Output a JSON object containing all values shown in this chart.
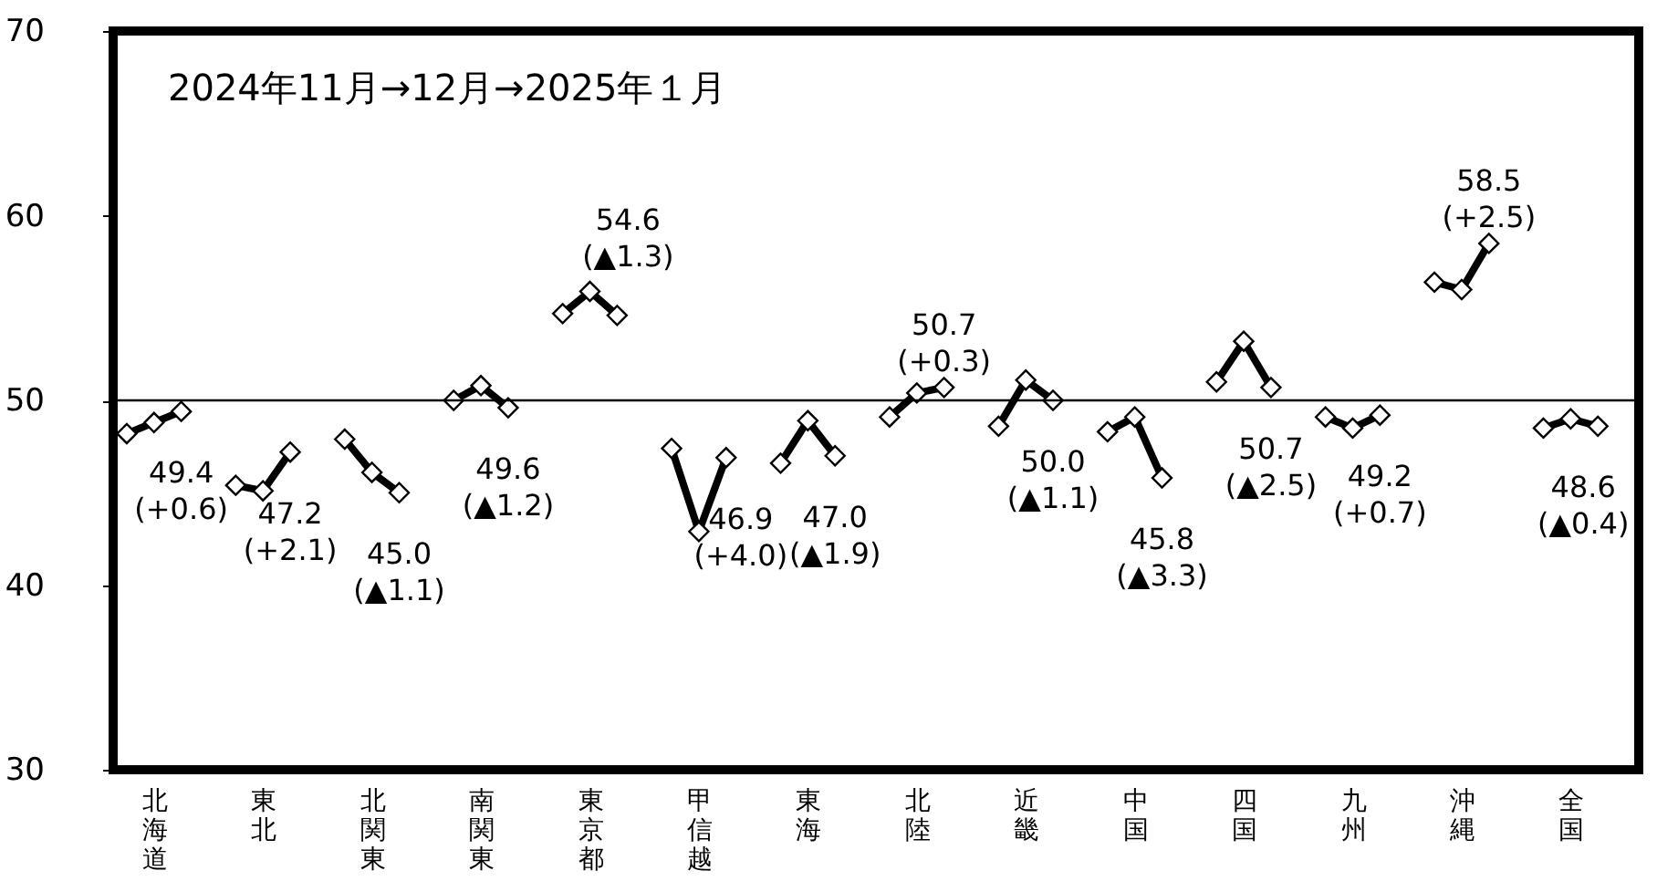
{
  "chart_data": {
    "type": "line",
    "title": "2024年11月→12月→2025年１月",
    "categories": [
      null,
      "北海道",
      null,
      null,
      null,
      "東北",
      null,
      null,
      null,
      "北関東",
      null,
      null,
      null,
      "南関東",
      null,
      null,
      null,
      "東京都",
      null,
      null,
      null,
      "甲信越",
      null,
      null,
      null,
      "東海",
      null,
      null,
      null,
      "北陸",
      null,
      null,
      null,
      "近畿",
      null,
      null,
      null,
      "中国",
      null,
      null,
      null,
      "四国",
      null,
      null,
      null,
      "九州",
      null,
      null,
      null,
      "沖縄",
      null,
      null,
      null,
      "全国",
      null,
      null
    ],
    "series": [
      {
        "color": "#000000",
        "values": [
          48.2,
          48.8,
          49.4,
          null,
          45.4,
          45.1,
          47.2,
          null,
          47.9,
          46.1,
          45.0,
          null,
          50.0,
          50.8,
          49.6,
          null,
          54.7,
          55.9,
          54.6,
          null,
          47.4,
          42.9,
          46.9,
          null,
          46.6,
          48.9,
          47.0,
          null,
          49.1,
          50.4,
          50.7,
          null,
          48.6,
          51.1,
          50.0,
          null,
          48.3,
          49.1,
          45.8,
          null,
          51.0,
          53.2,
          50.7,
          null,
          49.1,
          48.5,
          49.2,
          null,
          56.4,
          56.0,
          58.5,
          null,
          48.5,
          49.0,
          48.6,
          null
        ],
        "value_labels": [
          null,
          null,
          "49.4 (+0.6)",
          null,
          null,
          null,
          "47.2 (+2.1)",
          null,
          null,
          null,
          "45.0 (▲1.1)",
          null,
          null,
          null,
          "49.6 (▲1.2)",
          null,
          null,
          null,
          "54.6 (▲1.3)",
          null,
          null,
          null,
          "46.9 (+4.0)",
          null,
          null,
          null,
          "47.0 (▲1.9)",
          null,
          null,
          null,
          "50.7 (+0.3)",
          null,
          null,
          null,
          "50.0 (▲1.1)",
          null,
          null,
          null,
          "45.8 (▲3.3)",
          null,
          null,
          null,
          "50.7 (▲2.5)",
          null,
          null,
          null,
          "49.2 (+0.7)",
          null,
          null,
          null,
          "58.5 (+2.5)",
          null,
          null,
          null,
          "48.6 (▲0.4)",
          null
        ]
      }
    ],
    "ylim": [
      30,
      70
    ],
    "yticks": [
      30,
      40,
      50,
      60,
      70
    ],
    "ref_lines": [
      {
        "axis": "y",
        "value": 50,
        "color": "#000000"
      }
    ],
    "marker": "diamond",
    "line_style": "solid",
    "grid": false
  }
}
